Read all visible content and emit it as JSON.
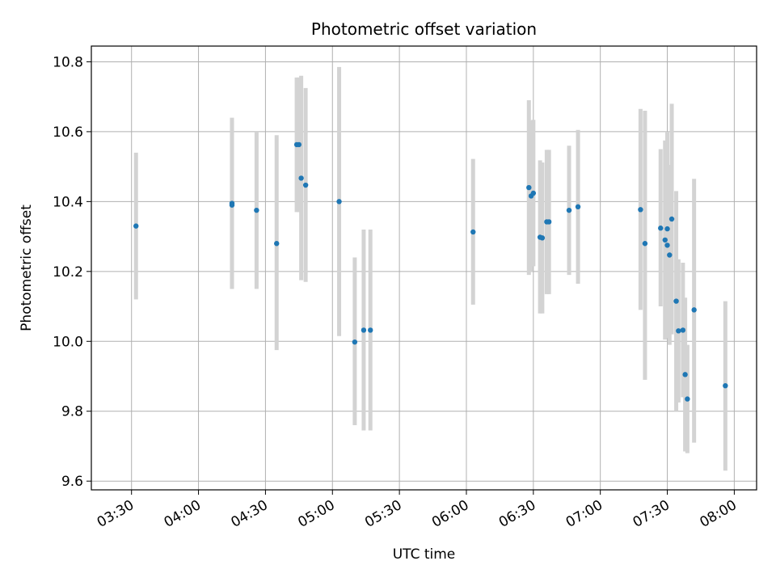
{
  "chart_data": {
    "type": "scatter",
    "title": "Photometric offset variation",
    "xlabel": "UTC time",
    "ylabel": "Photometric offset",
    "x_axis_kind": "time",
    "xlim": [
      "03:12",
      "08:10"
    ],
    "ylim": [
      9.575,
      10.845
    ],
    "grid": true,
    "x_ticks": [
      "03:30",
      "04:00",
      "04:30",
      "05:00",
      "05:30",
      "06:00",
      "06:30",
      "07:00",
      "07:30",
      "08:00"
    ],
    "y_ticks": [
      9.6,
      9.8,
      10.0,
      10.2,
      10.4,
      10.6,
      10.8
    ],
    "y_tick_labels": [
      "9.6",
      "9.8",
      "10.0",
      "10.2",
      "10.4",
      "10.6",
      "10.8"
    ],
    "marker_color": "#1f77b4",
    "errorbar_color": "#d3d3d3",
    "points": [
      {
        "t": "03:32",
        "y": 10.33,
        "lo": 10.12,
        "hi": 10.54
      },
      {
        "t": "04:15",
        "y": 10.395,
        "lo": 10.15,
        "hi": 10.64
      },
      {
        "t": "04:15",
        "y": 10.39,
        "lo": 10.15,
        "hi": 10.63
      },
      {
        "t": "04:26",
        "y": 10.375,
        "lo": 10.15,
        "hi": 10.6
      },
      {
        "t": "04:35",
        "y": 10.28,
        "lo": 9.975,
        "hi": 10.59
      },
      {
        "t": "04:44",
        "y": 10.563,
        "lo": 10.37,
        "hi": 10.755
      },
      {
        "t": "04:45",
        "y": 10.563,
        "lo": 10.37,
        "hi": 10.755
      },
      {
        "t": "04:46",
        "y": 10.467,
        "lo": 10.175,
        "hi": 10.76
      },
      {
        "t": "04:48",
        "y": 10.447,
        "lo": 10.17,
        "hi": 10.725
      },
      {
        "t": "05:03",
        "y": 10.4,
        "lo": 10.015,
        "hi": 10.785
      },
      {
        "t": "05:10",
        "y": 9.998,
        "lo": 9.76,
        "hi": 10.24
      },
      {
        "t": "05:14",
        "y": 10.032,
        "lo": 9.745,
        "hi": 10.32
      },
      {
        "t": "05:17",
        "y": 10.032,
        "lo": 9.745,
        "hi": 10.32
      },
      {
        "t": "06:03",
        "y": 10.313,
        "lo": 10.105,
        "hi": 10.522
      },
      {
        "t": "06:28",
        "y": 10.44,
        "lo": 10.19,
        "hi": 10.69
      },
      {
        "t": "06:29",
        "y": 10.416,
        "lo": 10.2,
        "hi": 10.632
      },
      {
        "t": "06:30",
        "y": 10.424,
        "lo": 10.215,
        "hi": 10.634
      },
      {
        "t": "06:33",
        "y": 10.298,
        "lo": 10.08,
        "hi": 10.518
      },
      {
        "t": "06:34",
        "y": 10.296,
        "lo": 10.08,
        "hi": 10.512
      },
      {
        "t": "06:36",
        "y": 10.342,
        "lo": 10.135,
        "hi": 10.548
      },
      {
        "t": "06:37",
        "y": 10.342,
        "lo": 10.135,
        "hi": 10.548
      },
      {
        "t": "06:46",
        "y": 10.375,
        "lo": 10.19,
        "hi": 10.56
      },
      {
        "t": "06:50",
        "y": 10.385,
        "lo": 10.165,
        "hi": 10.605
      },
      {
        "t": "07:18",
        "y": 10.377,
        "lo": 10.09,
        "hi": 10.665
      },
      {
        "t": "07:20",
        "y": 10.28,
        "lo": 9.89,
        "hi": 10.66
      },
      {
        "t": "07:27",
        "y": 10.324,
        "lo": 10.1,
        "hi": 10.55
      },
      {
        "t": "07:29",
        "y": 10.29,
        "lo": 10.005,
        "hi": 10.575
      },
      {
        "t": "07:30",
        "y": 10.322,
        "lo": 10.04,
        "hi": 10.6
      },
      {
        "t": "07:30",
        "y": 10.275,
        "lo": 10.01,
        "hi": 10.54
      },
      {
        "t": "07:31",
        "y": 10.247,
        "lo": 9.99,
        "hi": 10.505
      },
      {
        "t": "07:32",
        "y": 10.35,
        "lo": 10.02,
        "hi": 10.68
      },
      {
        "t": "07:34",
        "y": 10.115,
        "lo": 9.8,
        "hi": 10.43
      },
      {
        "t": "07:35",
        "y": 10.03,
        "lo": 9.825,
        "hi": 10.235
      },
      {
        "t": "07:37",
        "y": 10.032,
        "lo": 9.84,
        "hi": 10.225
      },
      {
        "t": "07:38",
        "y": 9.905,
        "lo": 9.685,
        "hi": 10.125
      },
      {
        "t": "07:39",
        "y": 9.835,
        "lo": 9.68,
        "hi": 9.99
      },
      {
        "t": "07:42",
        "y": 10.09,
        "lo": 9.71,
        "hi": 10.465
      },
      {
        "t": "07:56",
        "y": 9.873,
        "lo": 9.63,
        "hi": 10.115
      }
    ]
  }
}
